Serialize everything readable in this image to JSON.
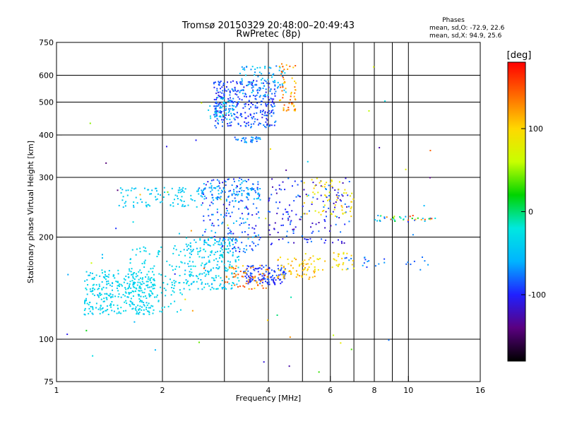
{
  "chart_data": {
    "type": "scatter",
    "title": "Tromsø 20150329 20:48:00–20:49:43",
    "subtitle": "RwPretec (8p)",
    "xlabel": "Frequency [MHz]",
    "ylabel": "Stationary phase Virtual Height [km]",
    "x_scale": "log",
    "y_scale": "log",
    "xlim": [
      1,
      16
    ],
    "ylim": [
      75,
      750
    ],
    "x_ticks": [
      1,
      2,
      4,
      6,
      8,
      10,
      16
    ],
    "x_minor_gridlines": [
      3,
      5,
      7,
      9
    ],
    "y_ticks": [
      75,
      100,
      200,
      300,
      400,
      500,
      600,
      750
    ],
    "grid": true,
    "legend": {
      "heading": "Phases",
      "lines": [
        "mean, sd,O: -72.9, 22.6",
        "mean, sd,X:  94.9, 25.6"
      ],
      "placement": "top-right"
    },
    "colorbar": {
      "label": "[deg]",
      "range": [
        -180,
        180
      ],
      "ticks": [
        100,
        0,
        -100
      ],
      "placement": "right",
      "colormap": [
        "#000000",
        "#5a0080",
        "#2020ff",
        "#00b4ff",
        "#00e8e0",
        "#00d400",
        "#c8ff00",
        "#ffd800",
        "#ff6a00",
        "#ff0000"
      ]
    },
    "clusters": [
      {
        "x": [
          1.2,
          1.9
        ],
        "y": [
          118,
          160
        ],
        "n": 320,
        "phase": [
          -50,
          -25
        ]
      },
      {
        "x": [
          1.6,
          2.3
        ],
        "y": [
          120,
          190
        ],
        "n": 120,
        "phase": [
          -40,
          -30
        ]
      },
      {
        "x": [
          2.3,
          3.3
        ],
        "y": [
          140,
          200
        ],
        "n": 240,
        "phase": [
          -60,
          -20
        ]
      },
      {
        "x": [
          1.5,
          2.6
        ],
        "y": [
          245,
          280
        ],
        "n": 90,
        "phase": [
          -55,
          -35
        ]
      },
      {
        "x": [
          2.5,
          3.8
        ],
        "y": [
          255,
          280
        ],
        "n": 80,
        "phase": [
          -85,
          -40
        ]
      },
      {
        "x": [
          2.6,
          3.8
        ],
        "y": [
          180,
          300
        ],
        "n": 200,
        "phase": [
          -110,
          -50
        ]
      },
      {
        "x": [
          3.4,
          4.5
        ],
        "y": [
          145,
          165
        ],
        "n": 120,
        "phase": [
          -110,
          -80
        ]
      },
      {
        "x": [
          3.0,
          4.0
        ],
        "y": [
          140,
          165
        ],
        "n": 60,
        "phase": [
          100,
          160
        ]
      },
      {
        "x": [
          4.2,
          5.5
        ],
        "y": [
          150,
          175
        ],
        "n": 60,
        "phase": [
          90,
          130
        ]
      },
      {
        "x": [
          5.0,
          7.0
        ],
        "y": [
          160,
          180
        ],
        "n": 40,
        "phase": [
          80,
          110
        ]
      },
      {
        "x": [
          4.0,
          6.8
        ],
        "y": [
          190,
          300
        ],
        "n": 150,
        "phase": [
          -130,
          -70
        ]
      },
      {
        "x": [
          5.0,
          7.0
        ],
        "y": [
          230,
          300
        ],
        "n": 60,
        "phase": [
          70,
          110
        ]
      },
      {
        "x": [
          2.8,
          4.2
        ],
        "y": [
          420,
          580
        ],
        "n": 320,
        "phase": [
          -110,
          -70
        ]
      },
      {
        "x": [
          2.7,
          3.2
        ],
        "y": [
          440,
          520
        ],
        "n": 40,
        "phase": [
          -50,
          -30
        ]
      },
      {
        "x": [
          3.3,
          4.5
        ],
        "y": [
          520,
          640
        ],
        "n": 80,
        "phase": [
          -80,
          -40
        ]
      },
      {
        "x": [
          4.3,
          4.8
        ],
        "y": [
          470,
          650
        ],
        "n": 60,
        "phase": [
          100,
          160
        ]
      },
      {
        "x": [
          3.2,
          3.8
        ],
        "y": [
          380,
          395
        ],
        "n": 30,
        "phase": [
          -90,
          -60
        ]
      },
      {
        "x": [
          7.8,
          12.0
        ],
        "y": [
          222,
          232
        ],
        "n": 40,
        "phase": [
          -100,
          160
        ]
      },
      {
        "x": [
          6.5,
          11.5
        ],
        "y": [
          160,
          175
        ],
        "n": 25,
        "phase": [
          -100,
          -60
        ]
      },
      {
        "x": [
          1.0,
          12.0
        ],
        "y": [
          80,
          650
        ],
        "n": 60,
        "phase": [
          -150,
          150
        ]
      }
    ]
  }
}
